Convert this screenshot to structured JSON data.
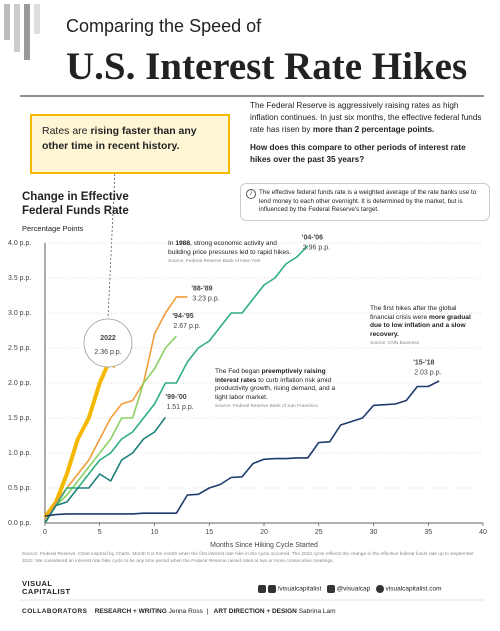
{
  "header": {
    "kicker": "Comparing the Speed of",
    "title": "U.S. Interest Rate Hikes"
  },
  "callout": [
    "Rates are ",
    "rising faster than any other time in recent history."
  ],
  "intro": {
    "paragraph": [
      "The Federal Reserve is aggressively raising rates as high inflation continues. In just six months, the effective federal funds rate has risen by ",
      "more than 2 percentage points."
    ],
    "question": "How does this compare to other periods of interest rate hikes over the past 35 years?"
  },
  "info_note": "The effective federal funds rate is a weighted average of the rate banks use to lend money to each other overnight. It is determined by the market, but is influenced by the Federal Reserve's target.",
  "annotations": [
    {
      "text": [
        "In ",
        "1988",
        ", strong economic activity and building price pressures led to rapid hikes."
      ],
      "source": "Source: Federal Reserve Bank of New York"
    },
    {
      "text": [
        "The first hikes after the global financial crisis were ",
        "more gradual due to low inflation and a slow recovery."
      ],
      "source": "Source: CNN Business"
    },
    {
      "text": [
        "The Fed began ",
        "preemptively raising interest rates",
        " to curb inflation risk amid productivity growth, rising demand, and a tight labor market."
      ],
      "source": "Source: Federal Reserve Bank of San Francisco"
    }
  ],
  "chart_data": {
    "type": "line",
    "title": "Change in Effective Federal Funds Rate",
    "subtitle": "Percentage Points",
    "x_label": "Months Since Hiking Cycle Started",
    "grid": true,
    "x": [
      0,
      1,
      2,
      3,
      4,
      5,
      6,
      7,
      8,
      9,
      10,
      11,
      12,
      13,
      14,
      15,
      16,
      17,
      18,
      19,
      20,
      21,
      22,
      23,
      24,
      25,
      26,
      27,
      28,
      29,
      30,
      31,
      32,
      33,
      34,
      35,
      36
    ],
    "xlim": [
      0,
      40
    ],
    "xticks": [
      0,
      5,
      10,
      15,
      20,
      25,
      30,
      35,
      40
    ],
    "ylim": [
      0,
      4
    ],
    "yticks": [
      {
        "value": 0,
        "label": "0.0 p.p."
      },
      {
        "value": 0.5,
        "label": "0.5 p.p."
      },
      {
        "value": 1,
        "label": "1.0 p.p."
      },
      {
        "value": 1.5,
        "label": "1.5 p.p."
      },
      {
        "value": 2,
        "label": "2.0 p.p."
      },
      {
        "value": 2.5,
        "label": "2.5 p.p."
      },
      {
        "value": 3,
        "label": "3.0 p.p."
      },
      {
        "value": 3.5,
        "label": "3.5 p.p."
      },
      {
        "value": 4,
        "label": "4.0 p.p."
      }
    ],
    "series": [
      {
        "name": "2022",
        "color": "#f5b800",
        "width": 4,
        "values": [
          0.08,
          0.3,
          0.7,
          1.2,
          1.5,
          2.0,
          2.36,
          null,
          null,
          null,
          null,
          null,
          null,
          null,
          null,
          null,
          null,
          null,
          null,
          null,
          null,
          null,
          null,
          null,
          null,
          null,
          null,
          null,
          null,
          null,
          null,
          null,
          null,
          null,
          null,
          null,
          null
        ],
        "value_labels": [
          null,
          null,
          null,
          null,
          null,
          null,
          "2.36 p.p.",
          null,
          null,
          null,
          null,
          null,
          null,
          null,
          null,
          null,
          null,
          null,
          null,
          null,
          null,
          null,
          null,
          null,
          null,
          null,
          null,
          null,
          null,
          null,
          null,
          null,
          null,
          null,
          null,
          null,
          null
        ]
      },
      {
        "name": "'88-'89",
        "color": "#f39c3a",
        "width": 1.6,
        "values": [
          0,
          0.3,
          0.5,
          0.7,
          0.9,
          1.2,
          1.5,
          1.7,
          1.75,
          2.0,
          2.7,
          3.0,
          3.23,
          3.23,
          null,
          null,
          null,
          null,
          null,
          null,
          null,
          null,
          null,
          null,
          null,
          null,
          null,
          null,
          null,
          null,
          null,
          null,
          null,
          null,
          null,
          null,
          null
        ],
        "value_labels": [
          null,
          null,
          null,
          null,
          null,
          null,
          null,
          null,
          null,
          null,
          null,
          null,
          null,
          "3.23 p.p.",
          null,
          null,
          null,
          null,
          null,
          null,
          null,
          null,
          null,
          null,
          null,
          null,
          null,
          null,
          null,
          null,
          null,
          null,
          null,
          null,
          null,
          null,
          null
        ]
      },
      {
        "name": "'94-'95",
        "color": "#8bd163",
        "width": 1.6,
        "values": [
          0,
          0.25,
          0.4,
          0.6,
          0.8,
          1.0,
          1.2,
          1.5,
          1.5,
          2.0,
          2.2,
          2.5,
          2.67,
          null,
          null,
          null,
          null,
          null,
          null,
          null,
          null,
          null,
          null,
          null,
          null,
          null,
          null,
          null,
          null,
          null,
          null,
          null,
          null,
          null,
          null,
          null,
          null
        ],
        "value_labels": [
          null,
          null,
          null,
          null,
          null,
          null,
          null,
          null,
          null,
          null,
          null,
          null,
          "2.67 p.p.",
          null,
          null,
          null,
          null,
          null,
          null,
          null,
          null,
          null,
          null,
          null,
          null,
          null,
          null,
          null,
          null,
          null,
          null,
          null,
          null,
          null,
          null,
          null,
          null
        ]
      },
      {
        "name": "'04-'06",
        "color": "#2fae7e",
        "width": 1.6,
        "values": [
          0,
          0.25,
          0.5,
          0.5,
          0.7,
          0.9,
          1.0,
          1.2,
          1.3,
          1.5,
          1.7,
          2.0,
          2.0,
          2.3,
          2.5,
          2.6,
          2.8,
          3.0,
          3.0,
          3.2,
          3.4,
          3.5,
          3.7,
          3.8,
          3.96,
          null,
          null,
          null,
          null,
          null,
          null,
          null,
          null,
          null,
          null,
          null,
          null
        ],
        "value_labels": [
          null,
          null,
          null,
          null,
          null,
          null,
          null,
          null,
          null,
          null,
          null,
          null,
          null,
          null,
          null,
          null,
          null,
          null,
          null,
          null,
          null,
          null,
          null,
          null,
          "3.96 p.p.",
          null,
          null,
          null,
          null,
          null,
          null,
          null,
          null,
          null,
          null,
          null,
          null
        ]
      },
      {
        "name": "'99-'00",
        "color": "#1e7f7a",
        "width": 1.6,
        "values": [
          0,
          0.25,
          0.3,
          0.5,
          0.5,
          0.7,
          0.6,
          0.9,
          1.0,
          1.2,
          1.3,
          1.51,
          null,
          null,
          null,
          null,
          null,
          null,
          null,
          null,
          null,
          null,
          null,
          null,
          null,
          null,
          null,
          null,
          null,
          null,
          null,
          null,
          null,
          null,
          null,
          null,
          null
        ],
        "value_labels": [
          null,
          null,
          null,
          null,
          null,
          null,
          null,
          null,
          null,
          null,
          null,
          "1.51 p.p.",
          null,
          null,
          null,
          null,
          null,
          null,
          null,
          null,
          null,
          null,
          null,
          null,
          null,
          null,
          null,
          null,
          null,
          null,
          null,
          null,
          null,
          null,
          null,
          null,
          null
        ]
      },
      {
        "name": "'15-'18",
        "color": "#1f3a6b",
        "width": 1.6,
        "values": [
          0.1,
          0.12,
          0.13,
          0.13,
          0.13,
          0.13,
          0.13,
          0.13,
          0.13,
          0.14,
          0.14,
          0.14,
          0.14,
          0.4,
          0.41,
          0.5,
          0.55,
          0.65,
          0.66,
          0.85,
          0.91,
          0.92,
          0.92,
          0.93,
          0.93,
          1.15,
          1.16,
          1.4,
          1.45,
          1.5,
          1.68,
          1.69,
          1.7,
          1.75,
          1.95,
          1.95,
          2.03
        ],
        "value_labels": [
          null,
          null,
          null,
          null,
          null,
          null,
          null,
          null,
          null,
          null,
          null,
          null,
          null,
          null,
          null,
          null,
          null,
          null,
          null,
          null,
          null,
          null,
          null,
          null,
          null,
          null,
          null,
          null,
          null,
          null,
          null,
          null,
          null,
          null,
          null,
          null,
          "2.03 p.p."
        ]
      }
    ]
  },
  "notes": "Source: Federal Reserve. Chart inspired by Charts. Month 0 is the month when the first interest rate hike in the cycle occurred. The 2022 cycle reflects the change in the effective federal funds rate up to September 2022. We considered an interest rate hike cycle to be any time period when the Federal Reserve raised rates at two or more consecutive meetings.",
  "footer": {
    "brand": [
      "VISUAL",
      "CAPITALIST"
    ],
    "social": [
      "/visualcapitalist",
      "@visualcap",
      "visualcapitalist.com"
    ],
    "collaborators": "COLLABORATORS",
    "research_role": "RESEARCH + WRITING",
    "research_name": "Jenna Ross",
    "design_role": "ART DIRECTION + DESIGN",
    "design_name": "Sabrina Lam"
  }
}
